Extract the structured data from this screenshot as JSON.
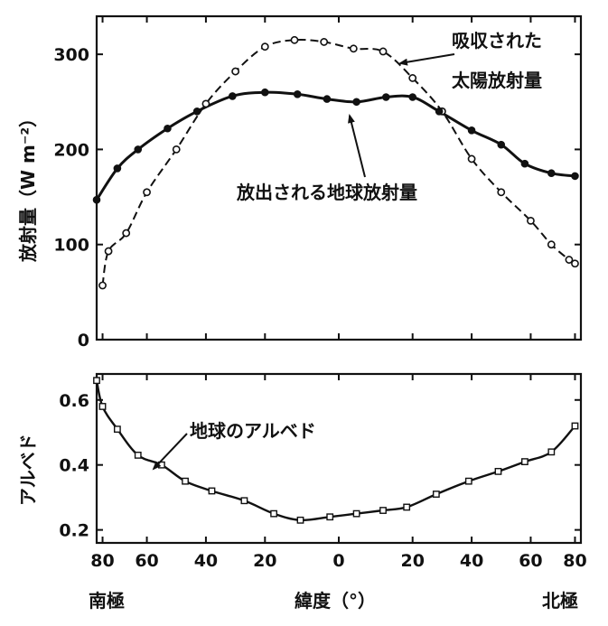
{
  "chart_data": [
    {
      "type": "line",
      "ylabel": "放射量（W m⁻²）",
      "ylim": [
        0,
        340
      ],
      "yticks": [
        0,
        100,
        200,
        300
      ],
      "xlim": [
        -82,
        82
      ],
      "x_orientation": "south-to-north (left to right)",
      "grid": false,
      "series": [
        {
          "name": "吸収された太陽放射量",
          "style": "dashed, open circles",
          "x": [
            -80,
            -78,
            -72,
            -65,
            -55,
            -45,
            -35,
            -25,
            -15,
            -5,
            5,
            15,
            25,
            35,
            45,
            55,
            65,
            72,
            78,
            80
          ],
          "values": [
            57,
            93,
            112,
            155,
            200,
            248,
            282,
            308,
            315,
            313,
            306,
            303,
            275,
            240,
            190,
            155,
            125,
            100,
            84,
            80
          ]
        },
        {
          "name": "放出される地球放射量",
          "style": "solid, filled circles",
          "x": [
            -82,
            -75,
            -68,
            -58,
            -48,
            -36,
            -25,
            -14,
            -4,
            6,
            16,
            25,
            34,
            45,
            55,
            63,
            72,
            80
          ],
          "values": [
            147,
            180,
            200,
            222,
            240,
            256,
            260,
            258,
            253,
            250,
            255,
            255,
            240,
            220,
            205,
            185,
            175,
            172
          ]
        }
      ]
    },
    {
      "type": "line",
      "ylabel": "アルベド",
      "ylim": [
        0.16,
        0.68
      ],
      "yticks": [
        "0.2",
        "0.4",
        "0.6"
      ],
      "grid": false,
      "series": [
        {
          "name": "地球のアルベド",
          "style": "solid line, open squares",
          "x": [
            -82,
            -80,
            -75,
            -68,
            -60,
            -52,
            -43,
            -32,
            -22,
            -13,
            -3,
            6,
            15,
            23,
            33,
            44,
            54,
            63,
            72,
            80
          ],
          "values": [
            0.66,
            0.58,
            0.51,
            0.43,
            0.4,
            0.35,
            0.32,
            0.29,
            0.25,
            0.23,
            0.24,
            0.25,
            0.26,
            0.27,
            0.31,
            0.35,
            0.38,
            0.41,
            0.44,
            0.52
          ]
        }
      ]
    }
  ],
  "x_axis": {
    "title": "緯度（°）",
    "ticks": [
      {
        "value": -80,
        "label": "80"
      },
      {
        "value": -65,
        "label": "60"
      },
      {
        "value": -45,
        "label": "40"
      },
      {
        "value": -25,
        "label": "20"
      },
      {
        "value": 0,
        "label": "0"
      },
      {
        "value": 25,
        "label": "20"
      },
      {
        "value": 45,
        "label": "40"
      },
      {
        "value": 65,
        "label": "60"
      },
      {
        "value": 80,
        "label": "80"
      }
    ],
    "south_label": "南極",
    "north_label": "北極"
  },
  "annotations": {
    "absorbed_line1": "吸収された",
    "absorbed_line2": "太陽放射量",
    "emitted": "放出される地球放射量",
    "albedo": "地球のアルベド"
  },
  "colors": {
    "ink": "#111111",
    "paper": "#ffffff"
  }
}
